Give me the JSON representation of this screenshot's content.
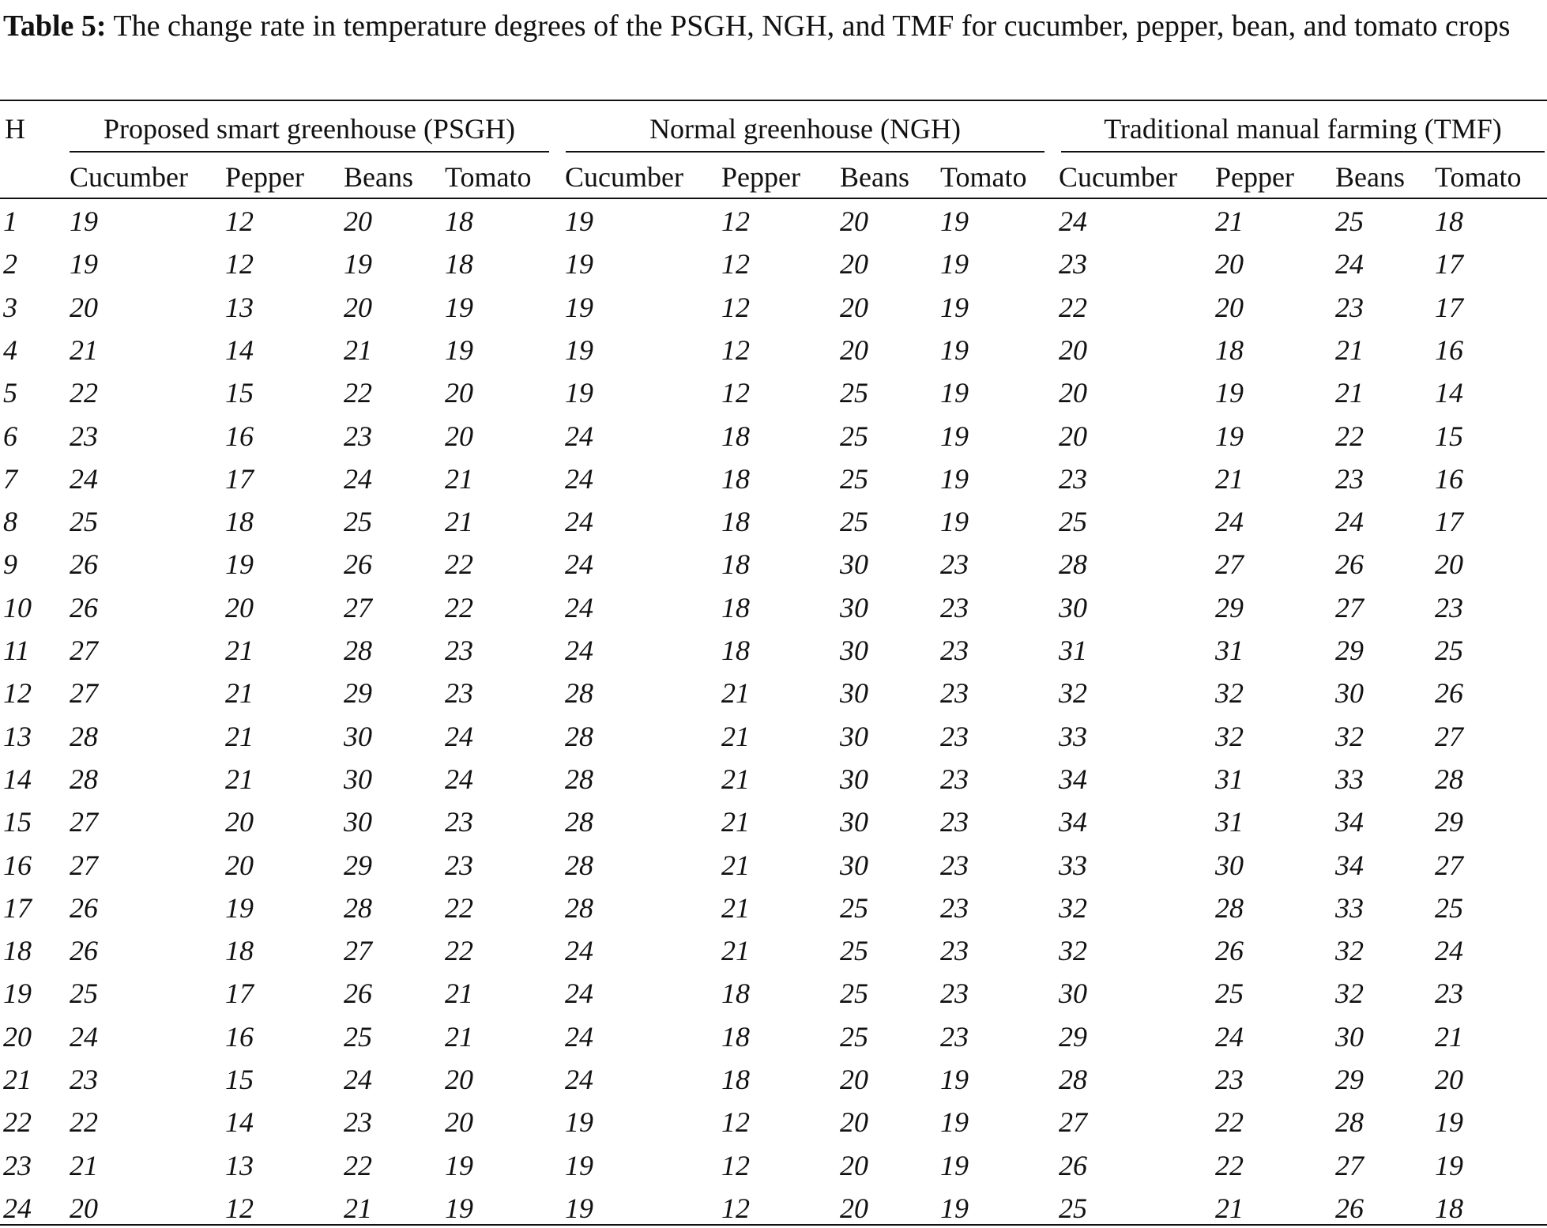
{
  "caption": {
    "label": "Table 5:",
    "text": "The change rate in temperature degrees of the PSGH, NGH, and TMF for cucumber, pepper, bean, and tomato crops"
  },
  "table": {
    "corner": "H",
    "groups": [
      {
        "name": "Proposed smart greenhouse (PSGH)",
        "columns": [
          "Cucumber",
          "Pepper",
          "Beans",
          "Tomato"
        ]
      },
      {
        "name": "Normal greenhouse (NGH)",
        "columns": [
          "Cucumber",
          "Pepper",
          "Beans",
          "Tomato"
        ]
      },
      {
        "name": "Traditional manual farming (TMF)",
        "columns": [
          "Cucumber",
          "Pepper",
          "Beans",
          "Tomato"
        ]
      }
    ],
    "rows": [
      [
        1,
        19,
        12,
        20,
        18,
        19,
        12,
        20,
        19,
        24,
        21,
        25,
        18
      ],
      [
        2,
        19,
        12,
        19,
        18,
        19,
        12,
        20,
        19,
        23,
        20,
        24,
        17
      ],
      [
        3,
        20,
        13,
        20,
        19,
        19,
        12,
        20,
        19,
        22,
        20,
        23,
        17
      ],
      [
        4,
        21,
        14,
        21,
        19,
        19,
        12,
        20,
        19,
        20,
        18,
        21,
        16
      ],
      [
        5,
        22,
        15,
        22,
        20,
        19,
        12,
        25,
        19,
        20,
        19,
        21,
        14
      ],
      [
        6,
        23,
        16,
        23,
        20,
        24,
        18,
        25,
        19,
        20,
        19,
        22,
        15
      ],
      [
        7,
        24,
        17,
        24,
        21,
        24,
        18,
        25,
        19,
        23,
        21,
        23,
        16
      ],
      [
        8,
        25,
        18,
        25,
        21,
        24,
        18,
        25,
        19,
        25,
        24,
        24,
        17
      ],
      [
        9,
        26,
        19,
        26,
        22,
        24,
        18,
        30,
        23,
        28,
        27,
        26,
        20
      ],
      [
        10,
        26,
        20,
        27,
        22,
        24,
        18,
        30,
        23,
        30,
        29,
        27,
        23
      ],
      [
        11,
        27,
        21,
        28,
        23,
        24,
        18,
        30,
        23,
        31,
        31,
        29,
        25
      ],
      [
        12,
        27,
        21,
        29,
        23,
        28,
        21,
        30,
        23,
        32,
        32,
        30,
        26
      ],
      [
        13,
        28,
        21,
        30,
        24,
        28,
        21,
        30,
        23,
        33,
        32,
        32,
        27
      ],
      [
        14,
        28,
        21,
        30,
        24,
        28,
        21,
        30,
        23,
        34,
        31,
        33,
        28
      ],
      [
        15,
        27,
        20,
        30,
        23,
        28,
        21,
        30,
        23,
        34,
        31,
        34,
        29
      ],
      [
        16,
        27,
        20,
        29,
        23,
        28,
        21,
        30,
        23,
        33,
        30,
        34,
        27
      ],
      [
        17,
        26,
        19,
        28,
        22,
        28,
        21,
        25,
        23,
        32,
        28,
        33,
        25
      ],
      [
        18,
        26,
        18,
        27,
        22,
        24,
        21,
        25,
        23,
        32,
        26,
        32,
        24
      ],
      [
        19,
        25,
        17,
        26,
        21,
        24,
        18,
        25,
        23,
        30,
        25,
        32,
        23
      ],
      [
        20,
        24,
        16,
        25,
        21,
        24,
        18,
        25,
        23,
        29,
        24,
        30,
        21
      ],
      [
        21,
        23,
        15,
        24,
        20,
        24,
        18,
        20,
        19,
        28,
        23,
        29,
        20
      ],
      [
        22,
        22,
        14,
        23,
        20,
        19,
        12,
        20,
        19,
        27,
        22,
        28,
        19
      ],
      [
        23,
        21,
        13,
        22,
        19,
        19,
        12,
        20,
        19,
        26,
        22,
        27,
        19
      ],
      [
        24,
        20,
        12,
        21,
        19,
        19,
        12,
        20,
        19,
        25,
        21,
        26,
        18
      ]
    ]
  }
}
